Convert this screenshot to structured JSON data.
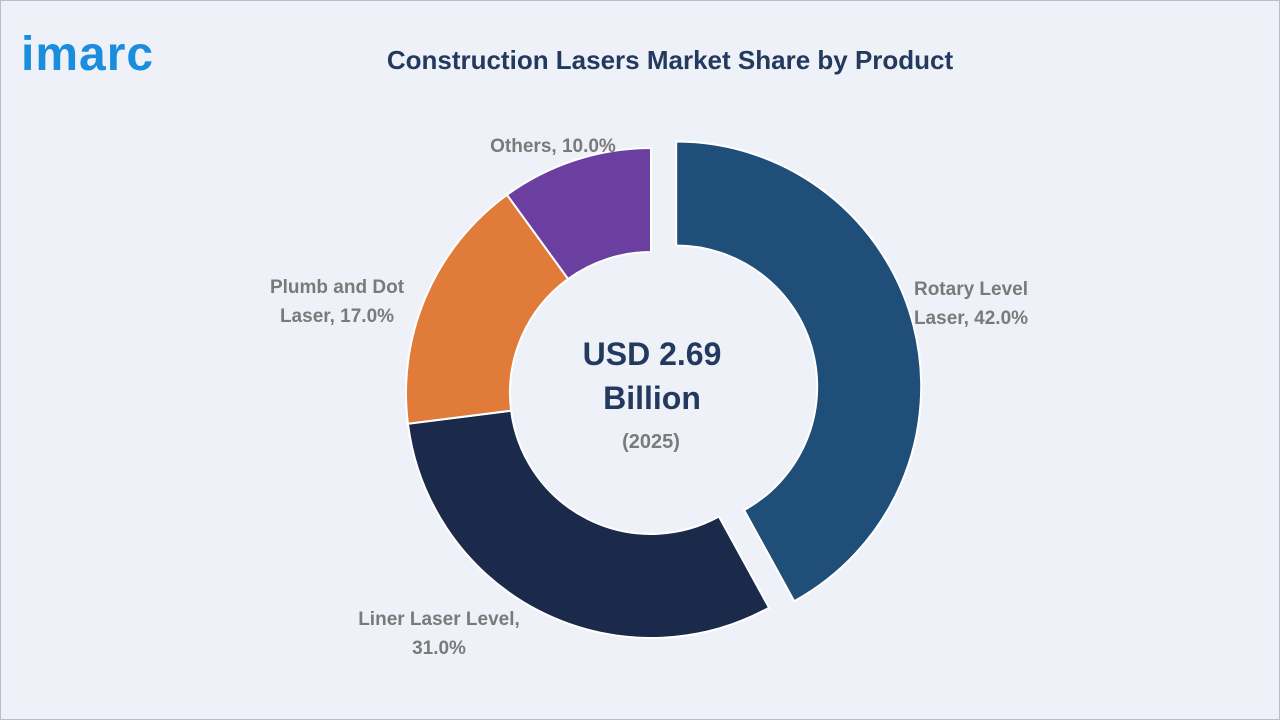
{
  "logo": {
    "text": "imarc",
    "color": "#1a8ddc"
  },
  "header": {
    "title": "Construction Lasers Market Share by Product"
  },
  "center": {
    "line1": "USD 2.69",
    "line2": "Billion",
    "line3": "(2025)"
  },
  "chart_data": {
    "type": "pie",
    "style": "donut",
    "title": "Construction Lasers Market Share by Product",
    "unit": "%",
    "categories": [
      "Rotary Level Laser",
      "Liner Laser Level",
      "Plumb and Dot Laser",
      "Others"
    ],
    "values": [
      42.0,
      31.0,
      17.0,
      10.0
    ],
    "colors": [
      "#1f4e79",
      "#1b2a4a",
      "#e07b39",
      "#6b3fa0"
    ],
    "exploded": [
      "Rotary Level Laser"
    ],
    "labels": [
      {
        "lines": [
          "Rotary Level",
          "Laser, 42.0%"
        ]
      },
      {
        "lines": [
          "Liner Laser Level,",
          "31.0%"
        ]
      },
      {
        "lines": [
          "Plumb and Dot",
          "Laser, 17.0%"
        ]
      },
      {
        "lines": [
          "Others, 10.0%"
        ]
      }
    ]
  }
}
